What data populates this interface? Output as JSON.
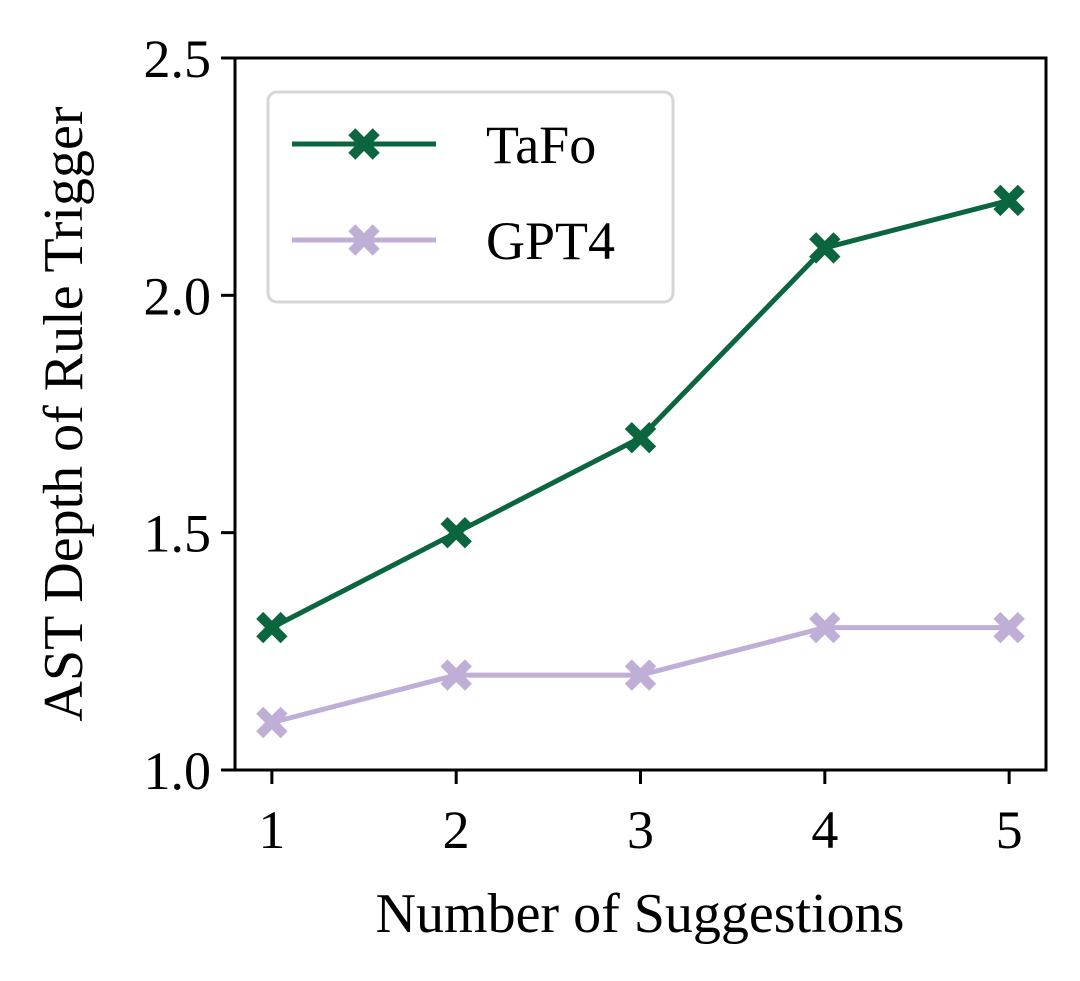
{
  "chart_data": {
    "type": "line",
    "title": "",
    "xlabel": "Number of Suggestions",
    "ylabel": "AST Depth of Rule Trigger",
    "categories": [
      1,
      2,
      3,
      4,
      5
    ],
    "xticks": [
      "1",
      "2",
      "3",
      "4",
      "5"
    ],
    "yticks": [
      "1.0",
      "1.5",
      "2.0",
      "2.5"
    ],
    "ylim": [
      1.0,
      2.5
    ],
    "xlim": [
      0.8,
      5.2
    ],
    "grid": false,
    "legend_position": "top-left",
    "marker": "X",
    "series": [
      {
        "name": "TaFo",
        "values": [
          1.3,
          1.5,
          1.7,
          2.1,
          2.2
        ],
        "color": "#0b6640"
      },
      {
        "name": "GPT4",
        "values": [
          1.1,
          1.2,
          1.2,
          1.3,
          1.3
        ],
        "color": "#bfaed6"
      }
    ]
  }
}
